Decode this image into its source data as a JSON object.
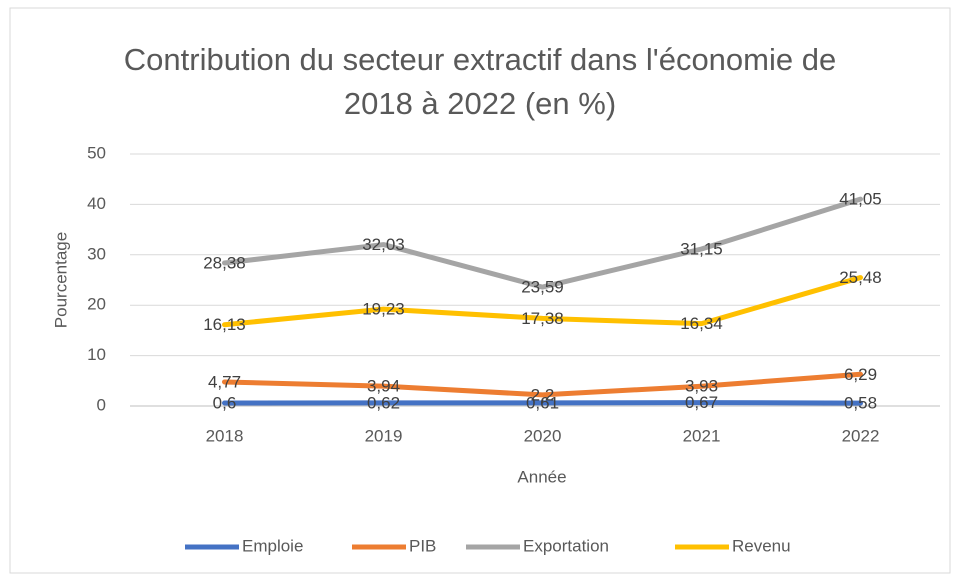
{
  "chart_data": {
    "type": "line",
    "title": "Contribution du secteur extractif dans l'économie de 2018 à 2022 (en %)",
    "x_label": "Année",
    "y_label": "Pourcentage",
    "categories": [
      "2018",
      "2019",
      "2020",
      "2021",
      "2022"
    ],
    "ylim": [
      0,
      50
    ],
    "yticks": [
      0,
      10,
      20,
      30,
      40,
      50
    ],
    "grid": true,
    "legend": "bottom",
    "series": [
      {
        "name": "Emploie",
        "color": "#4472c4",
        "values": [
          0.6,
          0.62,
          0.61,
          0.67,
          0.58
        ],
        "value_labels": [
          "0,6",
          "0,62",
          "0,61",
          "0,67",
          "0,58"
        ]
      },
      {
        "name": "PIB",
        "color": "#ed7d31",
        "values": [
          4.77,
          3.94,
          2.2,
          3.93,
          6.29
        ],
        "value_labels": [
          "4,77",
          "3,94",
          "2,2",
          "3,93",
          "6,29"
        ]
      },
      {
        "name": "Exportation",
        "color": "#a5a5a5",
        "values": [
          28.38,
          32.03,
          23.59,
          31.15,
          41.05
        ],
        "value_labels": [
          "28,38",
          "32,03",
          "23,59",
          "31,15",
          "41,05"
        ]
      },
      {
        "name": "Revenu",
        "color": "#ffc000",
        "values": [
          16.13,
          19.23,
          17.38,
          16.34,
          25.48
        ],
        "value_labels": [
          "16,13",
          "19,23",
          "17,38",
          "16,34",
          "25,48"
        ]
      }
    ]
  }
}
